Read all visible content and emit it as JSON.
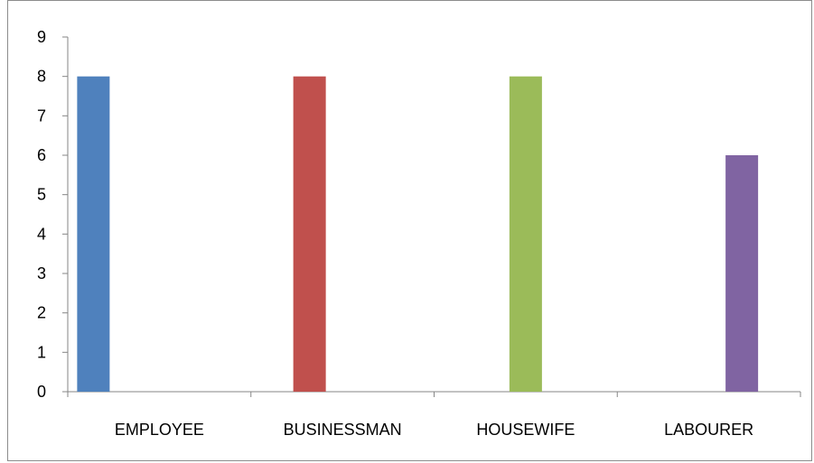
{
  "chart_data": {
    "type": "bar",
    "categories": [
      "EMPLOYEE",
      "BUSINESSMAN",
      "HOUSEWIFE",
      "LABOURER"
    ],
    "values": [
      8,
      8,
      8,
      6
    ],
    "colors": [
      "#4f81bd",
      "#c0504d",
      "#9bbb59",
      "#8064a2"
    ],
    "ylim": [
      0,
      9
    ],
    "yticks": [
      0,
      1,
      2,
      3,
      4,
      5,
      6,
      7,
      8,
      9
    ],
    "grid": false,
    "legend": "none",
    "title": "",
    "xlabel": "",
    "ylabel": ""
  }
}
